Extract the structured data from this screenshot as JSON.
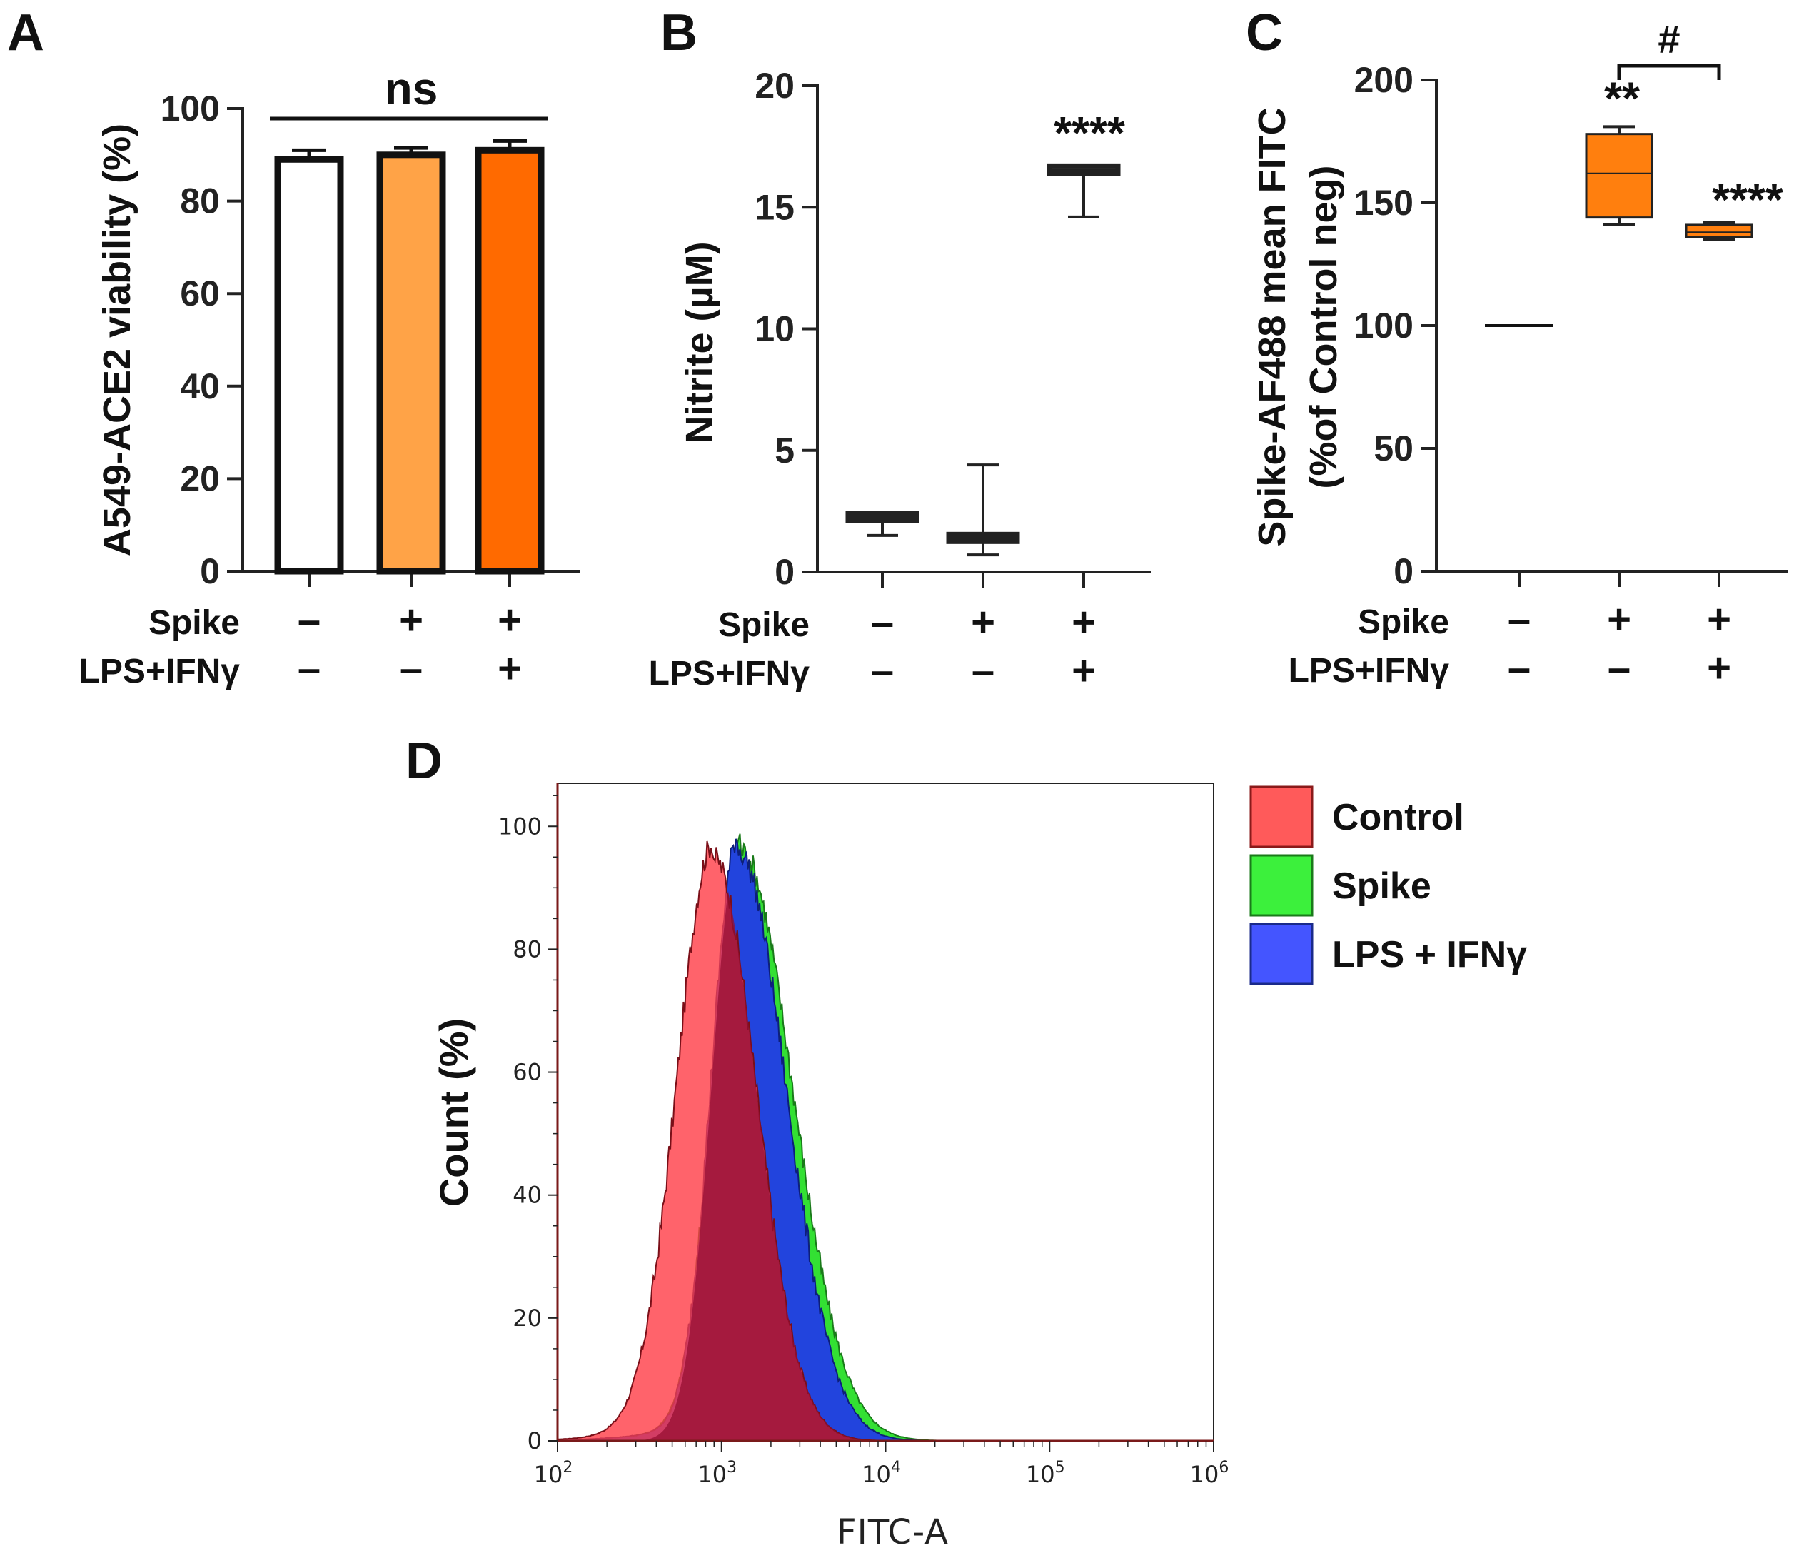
{
  "chart_data": [
    {
      "panel": "A",
      "type": "bar",
      "ylabel": "A549-ACE2 viability (%)",
      "ylim": [
        0,
        100
      ],
      "yticks": [
        0,
        20,
        40,
        60,
        80,
        100
      ],
      "categories": [
        "Control",
        "Spike",
        "Spike + LPS+IFNγ"
      ],
      "values": [
        89,
        90,
        91
      ],
      "errors": [
        2,
        1.5,
        2
      ],
      "colors": [
        "#ffffff",
        "#ffa347",
        "#ff6a00"
      ],
      "annotation": "ns",
      "conditions": [
        {
          "label": "Spike",
          "signs": [
            "–",
            "+",
            "+"
          ]
        },
        {
          "label": "LPS+IFNγ",
          "signs": [
            "–",
            "–",
            "+"
          ]
        }
      ]
    },
    {
      "panel": "B",
      "type": "box",
      "ylabel": "Nitrite (µM)",
      "ylim": [
        0,
        20
      ],
      "yticks": [
        0,
        5,
        10,
        15,
        20
      ],
      "categories": [
        "Control",
        "Spike",
        "Spike + LPS+IFNγ"
      ],
      "boxes": [
        {
          "min": 1.5,
          "q1": 2.2,
          "median": 2.2,
          "q3": 2.3,
          "max": 2.3
        },
        {
          "min": 0.7,
          "q1": 1.3,
          "median": 1.4,
          "q3": 1.5,
          "max": 4.4
        },
        {
          "min": 14.6,
          "q1": 16.4,
          "median": 16.5,
          "q3": 16.7,
          "max": 16.7
        }
      ],
      "annotations": [
        {
          "category": 2,
          "text": "****"
        }
      ],
      "conditions": [
        {
          "label": "Spike",
          "signs": [
            "–",
            "+",
            "+"
          ]
        },
        {
          "label": "LPS+IFNγ",
          "signs": [
            "–",
            "–",
            "+"
          ]
        }
      ]
    },
    {
      "panel": "C",
      "type": "box",
      "ylabel_line1": "Spike-AF488 mean FITC",
      "ylabel_line2": "(%of Control neg)",
      "ylim": [
        0,
        200
      ],
      "yticks": [
        0,
        50,
        100,
        150,
        200
      ],
      "categories": [
        "Control",
        "Spike",
        "Spike + LPS+IFNγ"
      ],
      "boxes": [
        {
          "min": 100,
          "q1": 100,
          "median": 100,
          "q3": 100,
          "max": 100
        },
        {
          "min": 141,
          "q1": 144,
          "median": 162,
          "q3": 178,
          "max": 181
        },
        {
          "min": 135,
          "q1": 136,
          "median": 138,
          "q3": 141,
          "max": 142
        }
      ],
      "box_color": "#ff7f0e",
      "annotations": [
        {
          "category": 1,
          "text": "**"
        },
        {
          "category": 2,
          "text": "****"
        }
      ],
      "bracket": {
        "from": 1,
        "to": 2,
        "text": "#"
      },
      "conditions": [
        {
          "label": "Spike",
          "signs": [
            "–",
            "+",
            "+"
          ]
        },
        {
          "label": "LPS+IFNγ",
          "signs": [
            "–",
            "–",
            "+"
          ]
        }
      ]
    },
    {
      "panel": "D",
      "type": "area",
      "title": "",
      "xlabel": "FITC-A",
      "ylabel": "Count (%)",
      "xscale": "log",
      "xlim": [
        100,
        1000000
      ],
      "ylim": [
        0,
        107
      ],
      "yticks": [
        0,
        20,
        40,
        60,
        80,
        100
      ],
      "xtick_labels": [
        {
          "base": "10",
          "exp": "2"
        },
        {
          "base": "10",
          "exp": "3"
        },
        {
          "base": "10",
          "exp": "4"
        },
        {
          "base": "10",
          "exp": "5"
        },
        {
          "base": "10",
          "exp": "6"
        }
      ],
      "legend_position": "right",
      "series": [
        {
          "name": "Control",
          "color": "#ff5050",
          "peak_log10": 2.95,
          "sigma_left": 0.22,
          "sigma_right": 0.26,
          "peak": 95
        },
        {
          "name": "Spike",
          "color": "#33e033",
          "peak_log10": 3.12,
          "sigma_left": 0.17,
          "sigma_right": 0.31,
          "peak": 96
        },
        {
          "name": "LPS + IFNγ",
          "color": "#3344ee",
          "peak_log10": 3.1,
          "sigma_left": 0.16,
          "sigma_right": 0.29,
          "peak": 96
        }
      ]
    }
  ],
  "panel_letters": [
    "A",
    "B",
    "C",
    "D"
  ]
}
